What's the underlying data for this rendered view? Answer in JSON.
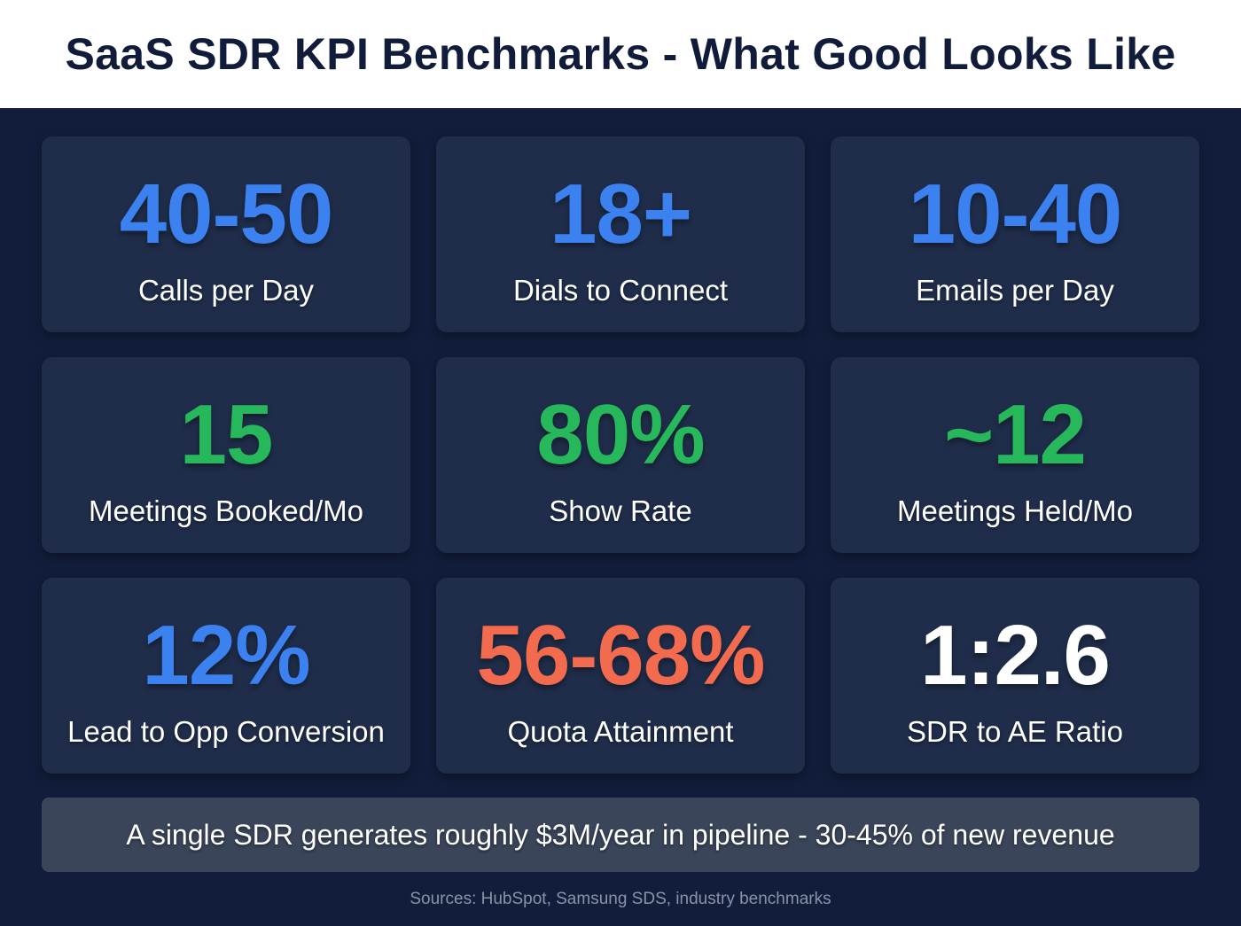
{
  "title": "SaaS SDR KPI Benchmarks - What Good Looks Like",
  "colors": {
    "blue": "#3b82f0",
    "green": "#27b85c",
    "red": "#f26b4f",
    "white": "#ffffff"
  },
  "cards": [
    {
      "value": "40-50",
      "label": "Calls per Day",
      "color": "#3b82f0"
    },
    {
      "value": "18+",
      "label": "Dials to Connect",
      "color": "#3b82f0"
    },
    {
      "value": "10-40",
      "label": "Emails per Day",
      "color": "#3b82f0"
    },
    {
      "value": "15",
      "label": "Meetings Booked/Mo",
      "color": "#27b85c"
    },
    {
      "value": "80%",
      "label": "Show Rate",
      "color": "#27b85c"
    },
    {
      "value": "~12",
      "label": "Meetings Held/Mo",
      "color": "#27b85c"
    },
    {
      "value": "12%",
      "label": "Lead to Opp Conversion",
      "color": "#3b82f0"
    },
    {
      "value": "56-68%",
      "label": "Quota Attainment",
      "color": "#f26b4f"
    },
    {
      "value": "1:2.6",
      "label": "SDR to AE Ratio",
      "color": "#ffffff"
    }
  ],
  "banner": "A single SDR generates roughly $3M/year in pipeline - 30-45% of new revenue",
  "sources": "Sources: HubSpot, Samsung SDS, industry benchmarks"
}
